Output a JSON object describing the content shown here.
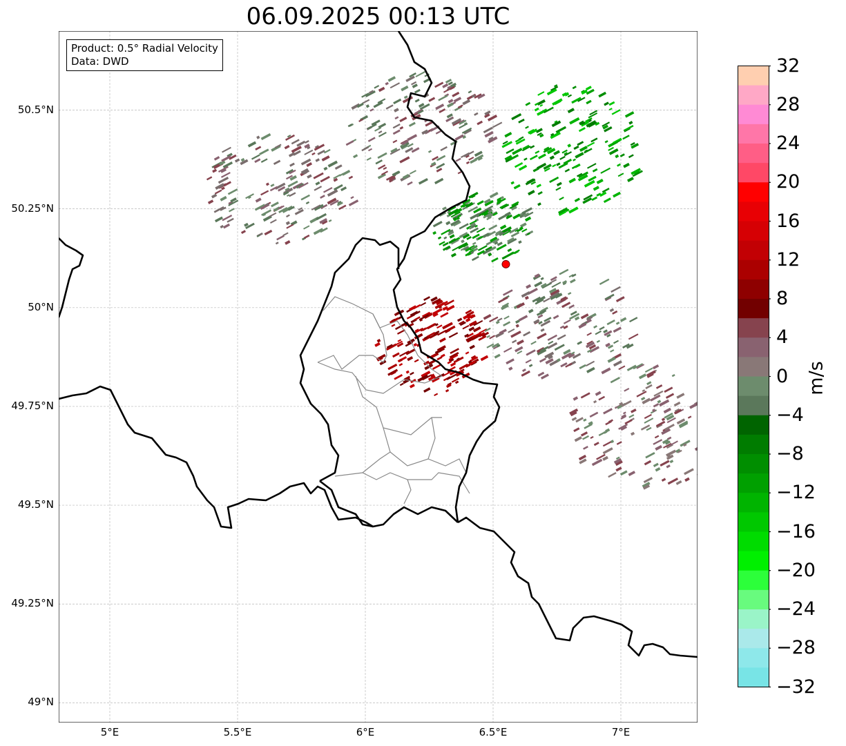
{
  "title": "06.09.2025 00:13 UTC",
  "info_box": {
    "product": "Product: 0.5° Radial Velocity",
    "data": "Data: DWD"
  },
  "map": {
    "x_ticks": [
      "5°E",
      "5.5°E",
      "6°E",
      "6.5°E",
      "7°E"
    ],
    "y_ticks": [
      "50.5°N",
      "50.25°N",
      "50°N",
      "49.75°N",
      "49.5°N",
      "49.25°N",
      "49°N"
    ],
    "lon_range": [
      4.8,
      7.3
    ],
    "lat_range": [
      48.95,
      50.7
    ],
    "radar_site": {
      "lon": 6.55,
      "lat": 50.11
    },
    "echo_regions": [
      {
        "kind": "outbound",
        "lon": 6.2,
        "lat": 50.45
      },
      {
        "kind": "outbound",
        "lon": 5.65,
        "lat": 50.3
      },
      {
        "kind": "inbound",
        "lon": 6.8,
        "lat": 50.4
      },
      {
        "kind": "inbound-light",
        "lon": 6.45,
        "lat": 50.2
      },
      {
        "kind": "outbound-strong",
        "lon": 6.25,
        "lat": 49.9
      },
      {
        "kind": "outbound",
        "lon": 6.75,
        "lat": 49.95
      },
      {
        "kind": "outbound-light",
        "lon": 7.1,
        "lat": 49.7
      }
    ]
  },
  "colorbar": {
    "label": "m/s",
    "tick_labels": [
      "32",
      "28",
      "24",
      "20",
      "16",
      "12",
      "8",
      "4",
      "0",
      "−4",
      "−8",
      "−12",
      "−16",
      "−20",
      "−24",
      "−28",
      "−32"
    ],
    "range": [
      -32,
      32
    ],
    "colors_top_to_bottom": [
      "#ffcfb0",
      "#ffa8c6",
      "#ff8ad4",
      "#ff76a8",
      "#ff5e86",
      "#ff4866",
      "#ff0000",
      "#e80004",
      "#d60004",
      "#c20004",
      "#ab0000",
      "#8e0000",
      "#720000",
      "#86434e",
      "#896270",
      "#897877",
      "#6d8c6d",
      "#5b785b",
      "#006400",
      "#007c00",
      "#008e00",
      "#00a000",
      "#00b400",
      "#00c800",
      "#00dc00",
      "#00f000",
      "#2cff3a",
      "#68fb7e",
      "#9af4c8",
      "#aae9ea",
      "#8ee8ea",
      "#78e4e6"
    ]
  }
}
